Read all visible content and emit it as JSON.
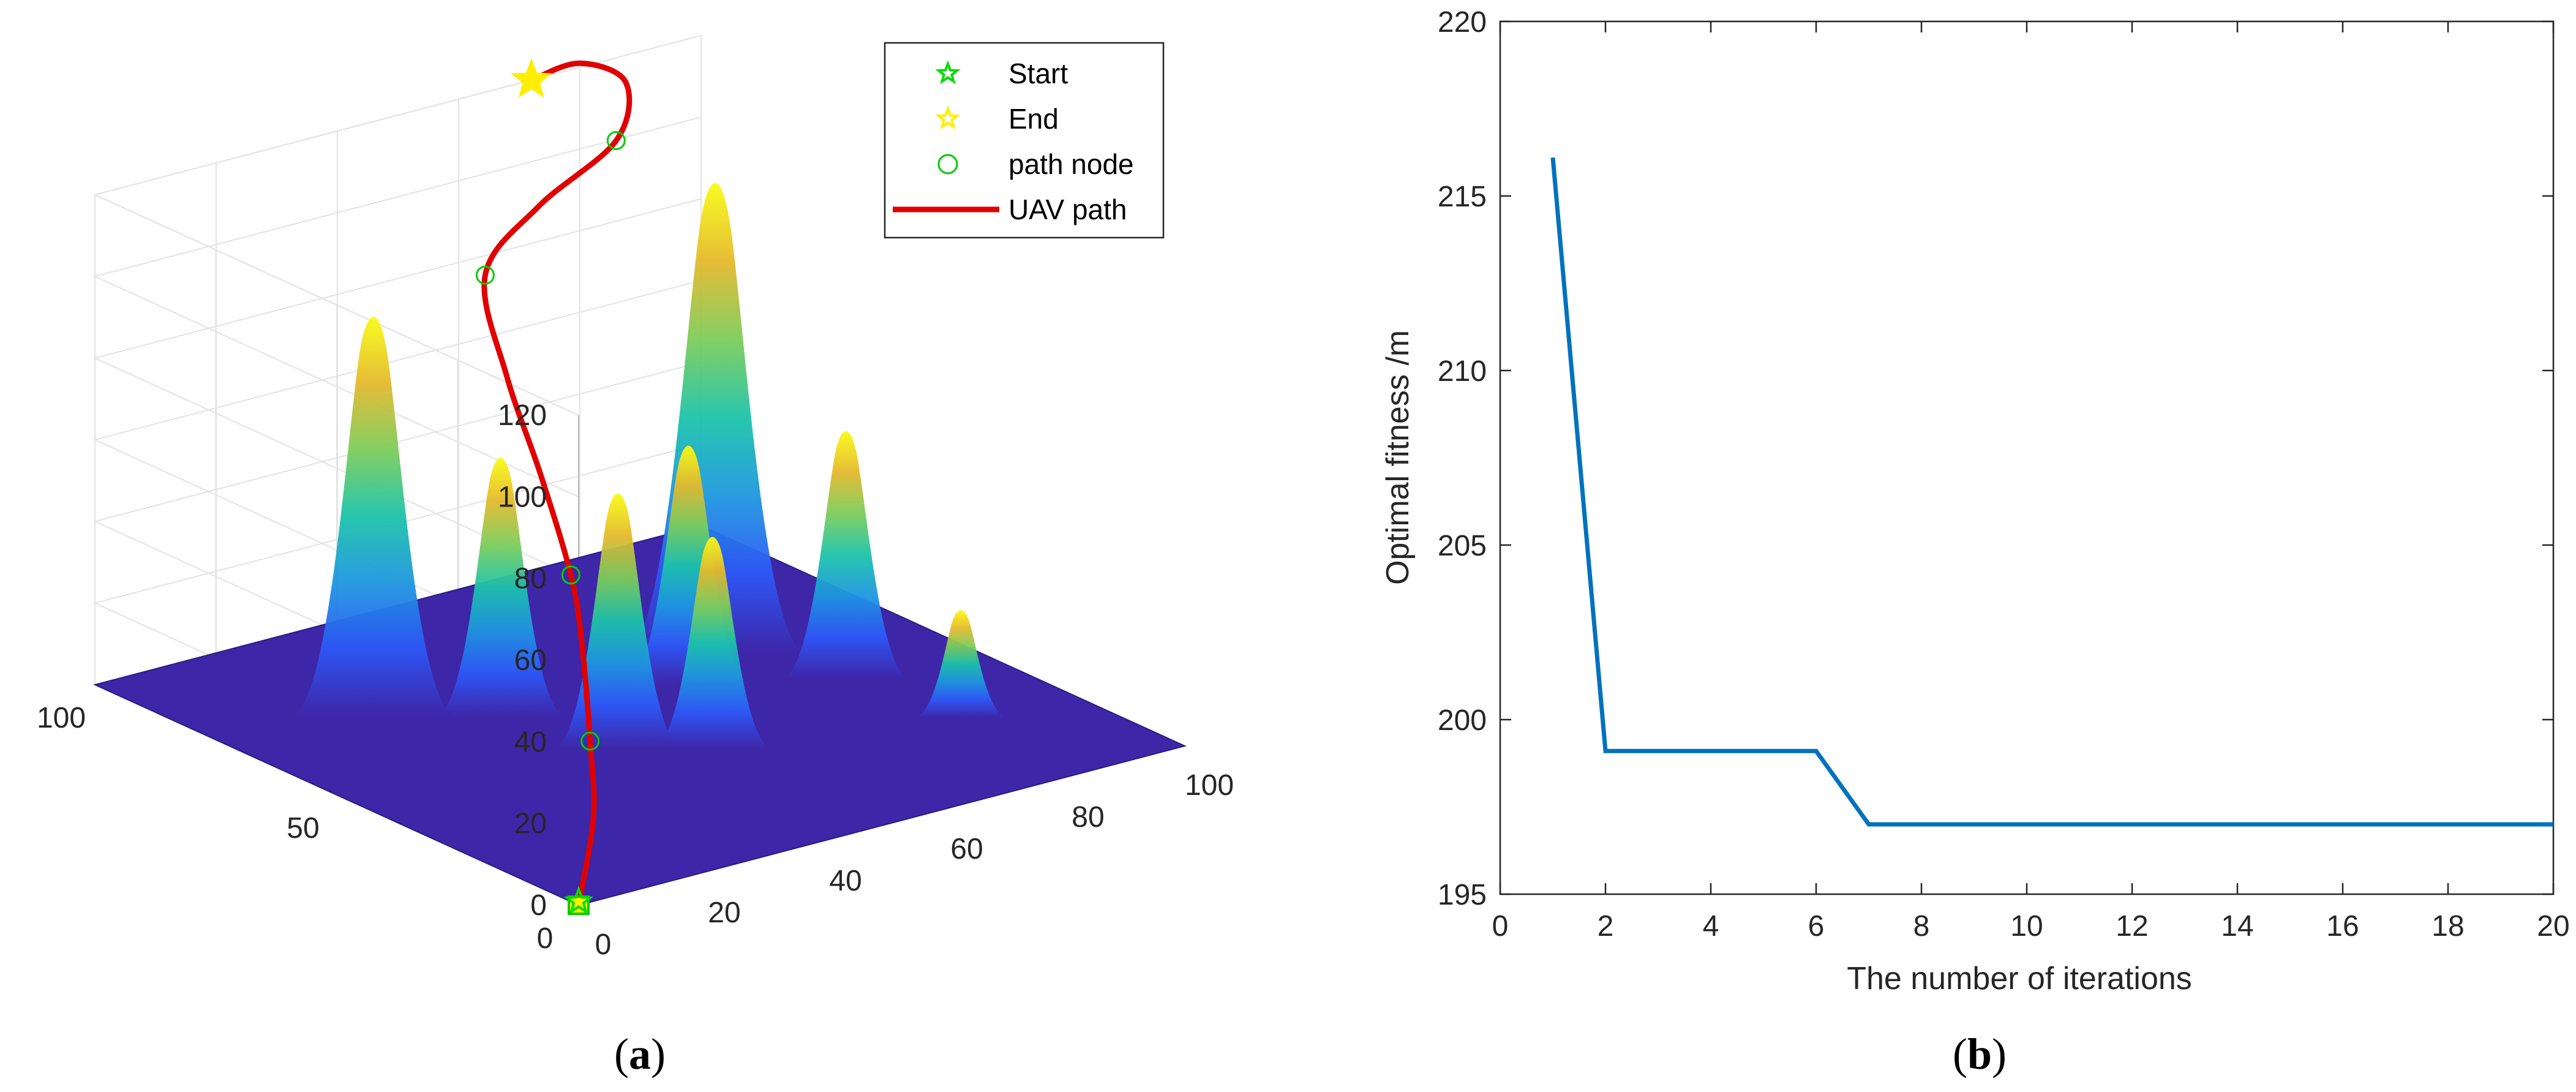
{
  "chart_data": [
    {
      "panel": "a",
      "type": "surface3d",
      "terrain": {
        "colormap": [
          "#3e26a8",
          "#2d57f7",
          "#1e96e0",
          "#1cc3aa",
          "#7ccd5b",
          "#e4b92c",
          "#f9fb15"
        ],
        "peaks": [
          {
            "x": 22,
            "y": 70,
            "height": 100
          },
          {
            "x": 35,
            "y": 60,
            "height": 65
          },
          {
            "x": 40,
            "y": 42,
            "height": 64
          },
          {
            "x": 50,
            "y": 35,
            "height": 53
          },
          {
            "x": 62,
            "y": 55,
            "height": 60
          },
          {
            "x": 72,
            "y": 62,
            "height": 118
          },
          {
            "x": 80,
            "y": 45,
            "height": 62
          },
          {
            "x": 83,
            "y": 25,
            "height": 27
          }
        ]
      },
      "axes": {
        "x_ticks": [
          "0",
          "20",
          "40",
          "60",
          "80",
          "100"
        ],
        "x_tick_values": [
          0,
          20,
          40,
          60,
          80,
          100
        ],
        "y_ticks": [
          "0",
          "50",
          "100"
        ],
        "y_tick_values": [
          0,
          50,
          100
        ],
        "z_ticks": [
          "0",
          "20",
          "40",
          "60",
          "80",
          "100",
          "120"
        ],
        "z_tick_values": [
          0,
          20,
          40,
          60,
          80,
          100,
          120
        ],
        "xlim": [
          0,
          100
        ],
        "ylim": [
          0,
          100
        ],
        "zlim": [
          0,
          120
        ],
        "grid": true
      },
      "legend": {
        "position": "top-right",
        "entries": [
          {
            "label": "Start",
            "marker": "pentagram",
            "color": "#00dd00"
          },
          {
            "label": "End",
            "marker": "pentagram",
            "color": "#ffee00"
          },
          {
            "label": "path node",
            "marker": "circle",
            "color": "#00cc00"
          },
          {
            "label": "UAV path",
            "marker": "line",
            "color": "#e00000"
          }
        ]
      },
      "start_point": {
        "x": 0,
        "y": 0,
        "z": 0
      },
      "end_point": {
        "x": 72,
        "y": 100,
        "z": 120
      },
      "path_nodes": [
        {
          "x": 37,
          "y": 44,
          "z": 2
        },
        {
          "x": 45,
          "y": 58,
          "z": 32
        },
        {
          "x": 58,
          "y": 92,
          "z": 82
        },
        {
          "x": 82,
          "y": 95,
          "z": 104
        }
      ],
      "uav_path": [
        {
          "x": 0,
          "y": 0,
          "z": 0
        },
        {
          "x": 20,
          "y": 22,
          "z": 2
        },
        {
          "x": 37,
          "y": 44,
          "z": 2
        },
        {
          "x": 42,
          "y": 52,
          "z": 20
        },
        {
          "x": 45,
          "y": 58,
          "z": 32
        },
        {
          "x": 48,
          "y": 68,
          "z": 50
        },
        {
          "x": 52,
          "y": 80,
          "z": 66
        },
        {
          "x": 58,
          "y": 92,
          "z": 82
        },
        {
          "x": 70,
          "y": 96,
          "z": 92
        },
        {
          "x": 82,
          "y": 95,
          "z": 104
        },
        {
          "x": 86,
          "y": 98,
          "z": 115
        },
        {
          "x": 80,
          "y": 100,
          "z": 121
        },
        {
          "x": 72,
          "y": 100,
          "z": 120
        }
      ],
      "panel_label": "a"
    },
    {
      "panel": "b",
      "type": "line",
      "series": [
        {
          "color": "#0072bd",
          "x": [
            1,
            2,
            3,
            4,
            5,
            6,
            7,
            8,
            9,
            10,
            11,
            12,
            13,
            14,
            15,
            16,
            17,
            18,
            19,
            20
          ],
          "values": [
            216.1,
            199.1,
            199.1,
            199.1,
            199.1,
            199.1,
            197.0,
            197.0,
            197.0,
            197.0,
            197.0,
            197.0,
            197.0,
            197.0,
            197.0,
            197.0,
            197.0,
            197.0,
            197.0,
            197.0
          ]
        }
      ],
      "xlabel": "The number of iterations",
      "ylabel": "Optimal fitness /m",
      "xlim": [
        0,
        20
      ],
      "ylim": [
        195,
        220
      ],
      "x_ticks": [
        "0",
        "2",
        "4",
        "6",
        "8",
        "10",
        "12",
        "14",
        "16",
        "18",
        "20"
      ],
      "x_tick_values": [
        0,
        2,
        4,
        6,
        8,
        10,
        12,
        14,
        16,
        18,
        20
      ],
      "y_ticks": [
        "195",
        "200",
        "205",
        "210",
        "215",
        "220"
      ],
      "y_tick_values": [
        195,
        200,
        205,
        210,
        215,
        220
      ],
      "grid": false,
      "panel_label": "b"
    }
  ]
}
